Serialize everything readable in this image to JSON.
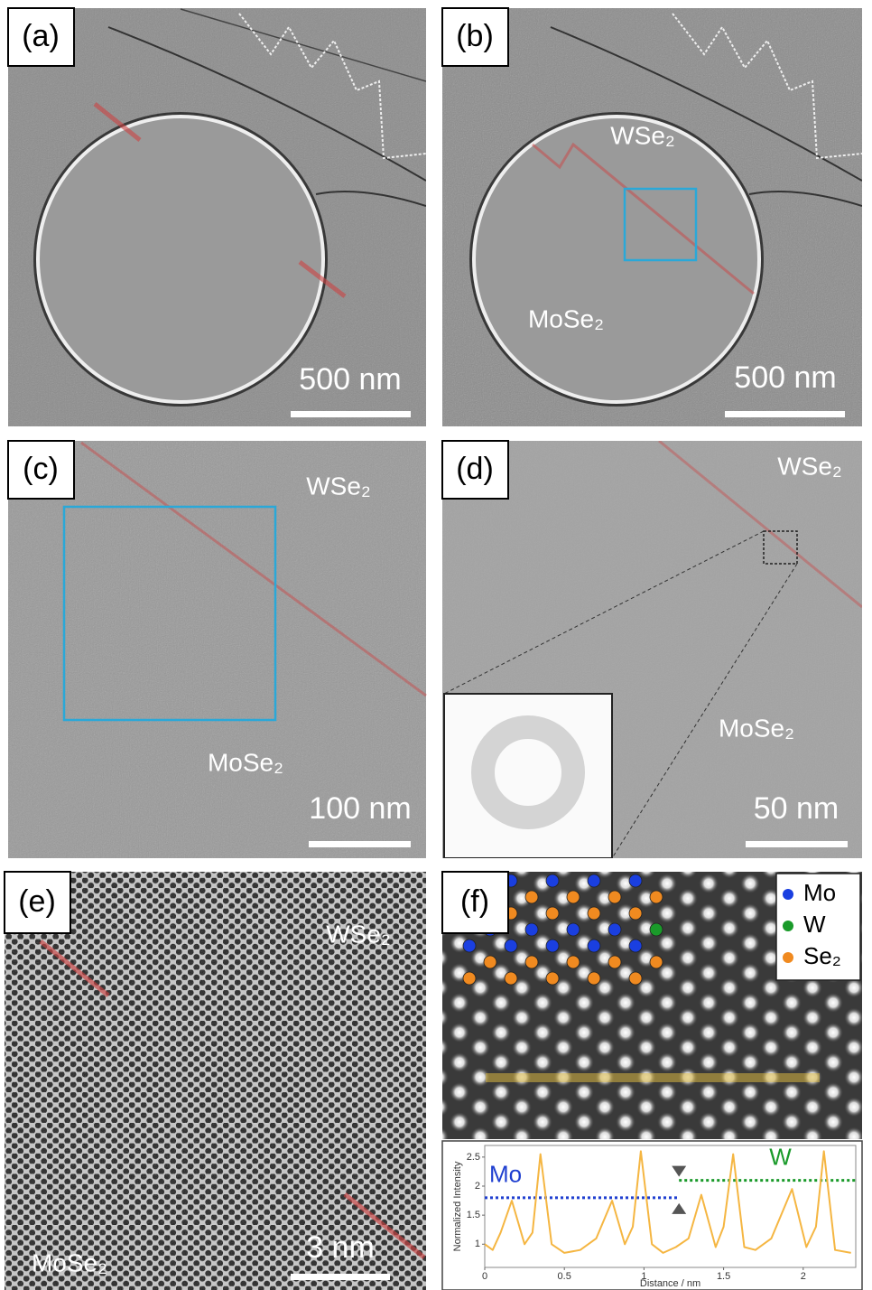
{
  "panels": [
    {
      "label": "(a)",
      "scale_bar": "500 nm"
    },
    {
      "label": "(b)",
      "scale_bar": "500 nm",
      "annotations": [
        "WSe₂",
        "MoSe₂"
      ]
    },
    {
      "label": "(c)",
      "scale_bar": "100 nm",
      "annotations": [
        "WSe₂",
        "MoSe₂"
      ]
    },
    {
      "label": "(d)",
      "scale_bar": "50 nm",
      "annotations": [
        "WSe₂",
        "MoSe₂"
      ]
    },
    {
      "label": "(e)",
      "scale_bar": "3 nm",
      "annotations": [
        "WSe₂",
        "MoSe₂"
      ]
    },
    {
      "label": "(f)",
      "legend": [
        {
          "name": "Mo",
          "color": "#1a3fe0"
        },
        {
          "name": "W",
          "color": "#1a9a2a"
        },
        {
          "name": "Se₂",
          "color": "#f08a20"
        }
      ]
    }
  ],
  "profile_plot": {
    "type": "line",
    "color": "#f5b642",
    "x": [
      0,
      0.05,
      0.1,
      0.17,
      0.25,
      0.3,
      0.35,
      0.42,
      0.5,
      0.6,
      0.7,
      0.8,
      0.88,
      0.93,
      0.98,
      1.05,
      1.12,
      1.2,
      1.28,
      1.36,
      1.45,
      1.5,
      1.56,
      1.63,
      1.7,
      1.8,
      1.93,
      2.02,
      2.08,
      2.13,
      2.2,
      2.3
    ],
    "values": [
      1.0,
      0.9,
      1.2,
      1.75,
      1.0,
      1.2,
      2.55,
      1.0,
      0.85,
      0.9,
      1.1,
      1.75,
      1.0,
      1.3,
      2.6,
      1.0,
      0.85,
      0.95,
      1.1,
      1.85,
      0.95,
      1.3,
      2.55,
      0.95,
      0.9,
      1.1,
      1.95,
      0.95,
      1.3,
      2.6,
      0.9,
      0.85
    ],
    "xlim": [
      0,
      2.33
    ],
    "ylim": [
      0.6,
      2.7
    ],
    "xticks": [
      0,
      0.5,
      1,
      1.5,
      2
    ],
    "yticks": [
      1,
      1.5,
      2,
      2.5
    ],
    "x_label": "Distance / nm",
    "y_label": "Normalized Intensity",
    "levels": [
      {
        "name": "Mo",
        "color": "#1f3fd0",
        "value": 1.8,
        "x": [
          0,
          1.22
        ]
      },
      {
        "name": "W",
        "color": "#1a9a2a",
        "value": 2.1,
        "x": [
          1.22,
          2.33
        ]
      }
    ]
  }
}
